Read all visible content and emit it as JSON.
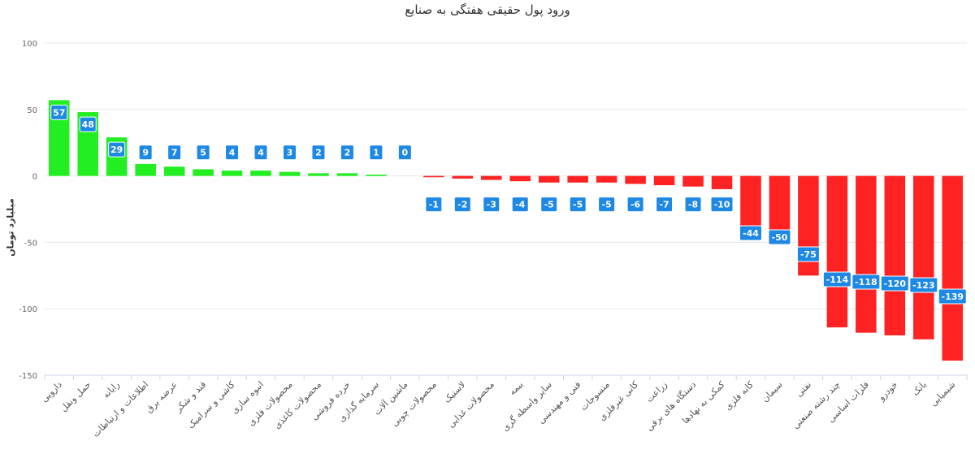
{
  "chart_data": {
    "type": "bar",
    "title": "ورود پول حقیقی هفتگی به صنایع",
    "xlabel": "",
    "ylabel": "میلیارد تومان",
    "ylim": [
      -150,
      100
    ],
    "yticks": [
      100,
      50,
      0,
      -50,
      -100,
      -150
    ],
    "grid": true,
    "legend": false,
    "positive_color": "#22ee22",
    "negative_color": "#ff2222",
    "label_bg_color": "#1e88e5",
    "categories": [
      "دارویی",
      "حمل ونقل",
      "رایانه",
      "اطلاعات و ارتباطات",
      "عرضه برق",
      "قند و شکر",
      "کاشی و سرامیک",
      "انبوه سازی",
      "محصولات فلزی",
      "محصولات کاغذی",
      "خرده فروشی",
      "سرمایه گذاری",
      "ماشین آلات",
      "محصولات چوبی",
      "لاستیک",
      "محصولات غذایی",
      "بیمه",
      "سایر واسطه گری",
      "فنی و مهندسی",
      "منسوجات",
      "کانی غیرفلزی",
      "زراعت",
      "دستگاه های برقی",
      "کمکی به نهادها",
      "کانه فلزی",
      "سیمان",
      "نفتی",
      "چند رشته صنعتی",
      "فلزات اساسی",
      "خودرو",
      "بانک",
      "شیمیایی"
    ],
    "values": [
      57,
      48,
      29,
      9,
      7,
      5,
      4,
      4,
      3,
      2,
      2,
      1,
      0,
      -1,
      -2,
      -3,
      -4,
      -5,
      -5,
      -5,
      -6,
      -7,
      -8,
      -10,
      -44,
      -50,
      -75,
      -114,
      -118,
      -120,
      -123,
      -139
    ]
  }
}
